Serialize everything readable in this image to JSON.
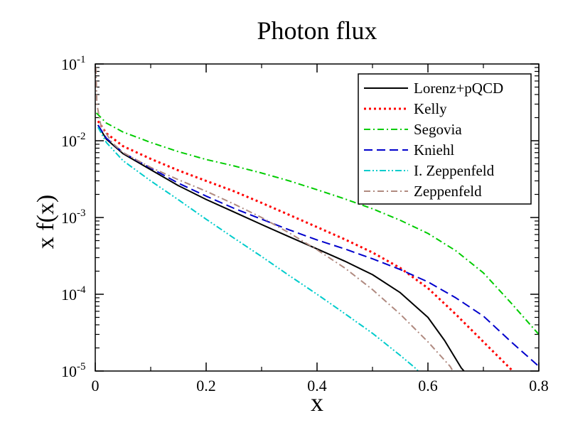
{
  "chart_data": {
    "type": "line",
    "title": "Photon flux",
    "xlabel": "x",
    "ylabel": "x f(x)",
    "x_scale": "linear",
    "y_scale": "log",
    "xlim": [
      0,
      0.8
    ],
    "ylim": [
      1e-05,
      0.1
    ],
    "x_ticks": [
      {
        "value": 0,
        "label": "0"
      },
      {
        "value": 0.2,
        "label": "0.2"
      },
      {
        "value": 0.4,
        "label": "0.4"
      },
      {
        "value": 0.6,
        "label": "0.6"
      },
      {
        "value": 0.8,
        "label": "0.8"
      }
    ],
    "y_ticks": [
      {
        "exp": -5,
        "base": "10",
        "sup": "-5"
      },
      {
        "exp": -4,
        "base": "10",
        "sup": "-4"
      },
      {
        "exp": -3,
        "base": "10",
        "sup": "-3"
      },
      {
        "exp": -2,
        "base": "10",
        "sup": "-2"
      },
      {
        "exp": -1,
        "base": "10",
        "sup": "-1"
      }
    ],
    "legend_position": "top-right",
    "series": [
      {
        "name": "Lorenz+pQCD",
        "color": "#000000",
        "style": "solid",
        "points": [
          [
            0.005,
            0.016
          ],
          [
            0.02,
            0.0105
          ],
          [
            0.05,
            0.0068
          ],
          [
            0.1,
            0.0042
          ],
          [
            0.15,
            0.0026
          ],
          [
            0.2,
            0.00172
          ],
          [
            0.25,
            0.00118
          ],
          [
            0.3,
            0.00081
          ],
          [
            0.35,
            0.00056
          ],
          [
            0.4,
            0.00039
          ],
          [
            0.45,
            0.00027
          ],
          [
            0.5,
            0.00018
          ],
          [
            0.55,
            0.000105
          ],
          [
            0.6,
            5e-05
          ],
          [
            0.63,
            2.5e-05
          ],
          [
            0.66,
            1.1e-05
          ],
          [
            0.665,
            1e-05
          ]
        ]
      },
      {
        "name": "Kelly",
        "color": "#ff0000",
        "style": "dotted",
        "points": [
          [
            0.005,
            0.018
          ],
          [
            0.02,
            0.0125
          ],
          [
            0.05,
            0.0085
          ],
          [
            0.1,
            0.0058
          ],
          [
            0.15,
            0.0041
          ],
          [
            0.2,
            0.003
          ],
          [
            0.25,
            0.0022
          ],
          [
            0.3,
            0.00155
          ],
          [
            0.35,
            0.00108
          ],
          [
            0.4,
            0.00075
          ],
          [
            0.45,
            0.00052
          ],
          [
            0.5,
            0.00035
          ],
          [
            0.55,
            0.00022
          ],
          [
            0.6,
            0.00012
          ],
          [
            0.65,
            5.5e-05
          ],
          [
            0.7,
            2.4e-05
          ],
          [
            0.75,
            1.05e-05
          ],
          [
            0.752,
            1e-05
          ]
        ]
      },
      {
        "name": "Segovia",
        "color": "#00cc00",
        "style": "dash-dot",
        "points": [
          [
            0.002,
            0.023
          ],
          [
            0.02,
            0.017
          ],
          [
            0.05,
            0.013
          ],
          [
            0.1,
            0.0095
          ],
          [
            0.15,
            0.0072
          ],
          [
            0.2,
            0.0057
          ],
          [
            0.25,
            0.0047
          ],
          [
            0.3,
            0.0038
          ],
          [
            0.35,
            0.003
          ],
          [
            0.4,
            0.0023
          ],
          [
            0.45,
            0.00175
          ],
          [
            0.5,
            0.0013
          ],
          [
            0.55,
            0.00092
          ],
          [
            0.6,
            0.00062
          ],
          [
            0.65,
            0.00037
          ],
          [
            0.7,
            0.00019
          ],
          [
            0.75,
            7.7e-05
          ],
          [
            0.8,
            3e-05
          ]
        ]
      },
      {
        "name": "Kniehl",
        "color": "#0000cc",
        "style": "dashed",
        "points": [
          [
            0.005,
            0.016
          ],
          [
            0.02,
            0.0108
          ],
          [
            0.05,
            0.007
          ],
          [
            0.1,
            0.0044
          ],
          [
            0.15,
            0.0028
          ],
          [
            0.2,
            0.0019
          ],
          [
            0.25,
            0.00132
          ],
          [
            0.3,
            0.00095
          ],
          [
            0.35,
            0.00069
          ],
          [
            0.4,
            0.00051
          ],
          [
            0.45,
            0.00039
          ],
          [
            0.5,
            0.00029
          ],
          [
            0.55,
            0.00021
          ],
          [
            0.6,
            0.000145
          ],
          [
            0.65,
            9e-05
          ],
          [
            0.7,
            5.2e-05
          ],
          [
            0.75,
            2.4e-05
          ],
          [
            0.8,
            1.15e-05
          ]
        ]
      },
      {
        "name": "I. Zeppenfeld",
        "color": "#00cccc",
        "style": "dash-dot-dot",
        "points": [
          [
            0.005,
            0.015
          ],
          [
            0.02,
            0.0095
          ],
          [
            0.05,
            0.0055
          ],
          [
            0.1,
            0.003
          ],
          [
            0.15,
            0.0017
          ],
          [
            0.2,
            0.00095
          ],
          [
            0.25,
            0.00054
          ],
          [
            0.3,
            0.00031
          ],
          [
            0.35,
            0.000175
          ],
          [
            0.4,
            0.0001
          ],
          [
            0.45,
            5.6e-05
          ],
          [
            0.5,
            3.1e-05
          ],
          [
            0.55,
            1.6e-05
          ],
          [
            0.58,
            1.05e-05
          ],
          [
            0.582,
            1e-05
          ]
        ]
      },
      {
        "name": "Zeppenfeld",
        "color": "#b08a80",
        "style": "dash-dot",
        "points": [
          [
            0.001,
            0.09
          ],
          [
            0.003,
            0.03
          ],
          [
            0.01,
            0.016
          ],
          [
            0.03,
            0.0095
          ],
          [
            0.05,
            0.007
          ],
          [
            0.1,
            0.0045
          ],
          [
            0.15,
            0.0031
          ],
          [
            0.2,
            0.0022
          ],
          [
            0.25,
            0.0015
          ],
          [
            0.3,
            0.001
          ],
          [
            0.35,
            0.00063
          ],
          [
            0.4,
            0.00038
          ],
          [
            0.45,
            0.00022
          ],
          [
            0.5,
            0.000115
          ],
          [
            0.55,
            5.5e-05
          ],
          [
            0.6,
            2.4e-05
          ],
          [
            0.64,
            1.15e-05
          ],
          [
            0.645,
            1e-05
          ]
        ]
      }
    ]
  }
}
